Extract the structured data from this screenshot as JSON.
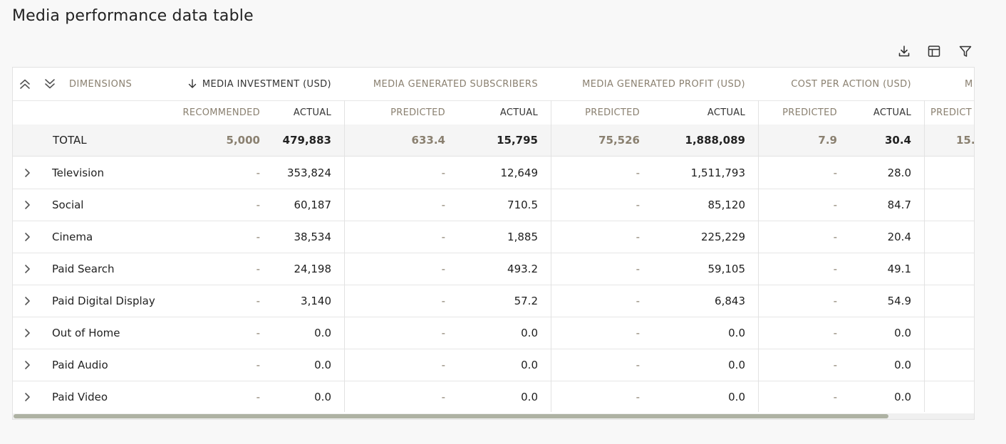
{
  "page": {
    "title": "Media performance data table"
  },
  "toolbar": {
    "download_icon": "download-icon",
    "columns_icon": "table-columns-icon",
    "filter_icon": "filter-icon"
  },
  "header": {
    "dimensions_label": "DIMENSIONS",
    "groups": [
      {
        "label": "MEDIA INVESTMENT (USD)",
        "sorted": "desc"
      },
      {
        "label": "MEDIA GENERATED SUBSCRIBERS"
      },
      {
        "label": "MEDIA GENERATED PROFIT (USD)"
      },
      {
        "label": "COST PER ACTION (USD)"
      },
      {
        "label": "M"
      }
    ],
    "subs": [
      "RECOMMENDED",
      "ACTUAL",
      "PREDICTED",
      "ACTUAL",
      "PREDICTED",
      "ACTUAL",
      "PREDICTED",
      "ACTUAL",
      "PREDICT"
    ]
  },
  "total": {
    "label": "TOTAL",
    "values": [
      "5,000",
      "479,883",
      "633.4",
      "15,795",
      "75,526",
      "1,888,089",
      "7.9",
      "30.4",
      "15."
    ]
  },
  "rows": [
    {
      "name": "Television",
      "values": [
        "-",
        "353,824",
        "-",
        "12,649",
        "-",
        "1,511,793",
        "-",
        "28.0"
      ]
    },
    {
      "name": "Social",
      "values": [
        "-",
        "60,187",
        "-",
        "710.5",
        "-",
        "85,120",
        "-",
        "84.7"
      ]
    },
    {
      "name": "Cinema",
      "values": [
        "-",
        "38,534",
        "-",
        "1,885",
        "-",
        "225,229",
        "-",
        "20.4"
      ]
    },
    {
      "name": "Paid Search",
      "values": [
        "-",
        "24,198",
        "-",
        "493.2",
        "-",
        "59,105",
        "-",
        "49.1"
      ]
    },
    {
      "name": "Paid Digital Display",
      "values": [
        "-",
        "3,140",
        "-",
        "57.2",
        "-",
        "6,843",
        "-",
        "54.9"
      ]
    },
    {
      "name": "Out of Home",
      "values": [
        "-",
        "0.0",
        "-",
        "0.0",
        "-",
        "0.0",
        "-",
        "0.0"
      ]
    },
    {
      "name": "Paid Audio",
      "values": [
        "-",
        "0.0",
        "-",
        "0.0",
        "-",
        "0.0",
        "-",
        "0.0"
      ]
    },
    {
      "name": "Paid Video",
      "values": [
        "-",
        "0.0",
        "-",
        "0.0",
        "-",
        "0.0",
        "-",
        "0.0"
      ]
    }
  ],
  "scrollbar": {
    "position": 0.0,
    "visible_fraction": 0.91
  }
}
